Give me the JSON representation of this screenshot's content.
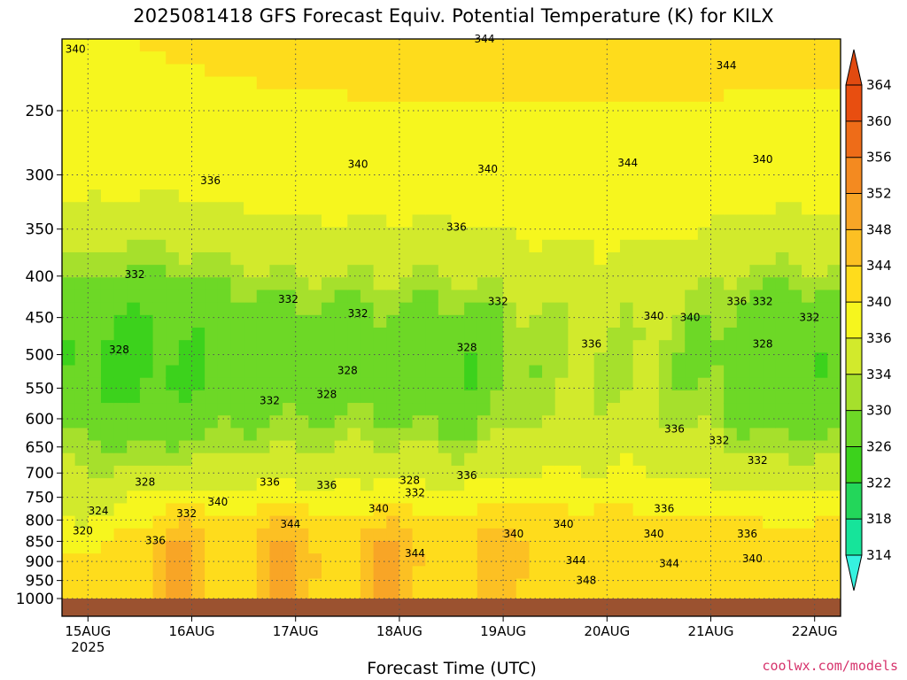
{
  "chart_data": {
    "type": "heatmap",
    "title": "2025081418 GFS Forecast Equiv. Potential Temperature (K) for KILX",
    "xlabel": "Forecast Time (UTC)",
    "ylabel": "",
    "credit": "coolwx.com/models",
    "y_axis": {
      "scale": "log-pressure",
      "inverted": true,
      "ylim": [
        1000,
        200
      ],
      "ticks": [
        250,
        300,
        350,
        400,
        450,
        500,
        550,
        600,
        650,
        700,
        750,
        800,
        850,
        900,
        950,
        1000
      ]
    },
    "x_axis": {
      "xlim": [
        "2025-08-14 18Z",
        "2025-08-22 06Z"
      ],
      "ticks": [
        {
          "label": "15AUG",
          "sub": "2025",
          "day": 15
        },
        {
          "label": "16AUG",
          "sub": "",
          "day": 16
        },
        {
          "label": "17AUG",
          "sub": "",
          "day": 17
        },
        {
          "label": "18AUG",
          "sub": "",
          "day": 18
        },
        {
          "label": "19AUG",
          "sub": "",
          "day": 19
        },
        {
          "label": "20AUG",
          "sub": "",
          "day": 20
        },
        {
          "label": "21AUG",
          "sub": "",
          "day": 21
        },
        {
          "label": "22AUG",
          "sub": "",
          "day": 22
        }
      ]
    },
    "grid": "dotted",
    "colorbar": {
      "units": "K",
      "levels": [
        314,
        318,
        322,
        326,
        330,
        334,
        336,
        340,
        344,
        348,
        352,
        356,
        360,
        364
      ],
      "colors": [
        "#22f0d0",
        "#16e49a",
        "#23d65a",
        "#3cd21c",
        "#6dd826",
        "#a6e02c",
        "#d2ea2c",
        "#f6f61e",
        "#fedc1c",
        "#fcc023",
        "#f8a526",
        "#f48a20",
        "#ee6c18",
        "#e84e10"
      ],
      "placement": "right"
    },
    "contour_labels": [
      {
        "v": "340",
        "day": 14.88,
        "p": 210
      },
      {
        "v": "344",
        "day": 18.82,
        "p": 204
      },
      {
        "v": "344",
        "day": 21.15,
        "p": 220
      },
      {
        "v": "336",
        "day": 16.18,
        "p": 305
      },
      {
        "v": "340",
        "day": 17.6,
        "p": 291
      },
      {
        "v": "340",
        "day": 18.85,
        "p": 295
      },
      {
        "v": "344",
        "day": 20.2,
        "p": 290
      },
      {
        "v": "340",
        "day": 21.5,
        "p": 287
      },
      {
        "v": "336",
        "day": 18.55,
        "p": 348
      },
      {
        "v": "332",
        "day": 15.45,
        "p": 398
      },
      {
        "v": "332",
        "day": 16.93,
        "p": 427
      },
      {
        "v": "332",
        "day": 17.6,
        "p": 445
      },
      {
        "v": "332",
        "day": 18.95,
        "p": 430
      },
      {
        "v": "340",
        "day": 20.45,
        "p": 448
      },
      {
        "v": "340",
        "day": 20.8,
        "p": 450
      },
      {
        "v": "336",
        "day": 21.25,
        "p": 430
      },
      {
        "v": "332",
        "day": 21.5,
        "p": 430
      },
      {
        "v": "332",
        "day": 21.95,
        "p": 450
      },
      {
        "v": "328",
        "day": 15.3,
        "p": 493
      },
      {
        "v": "328",
        "day": 17.5,
        "p": 523
      },
      {
        "v": "328",
        "day": 18.65,
        "p": 490
      },
      {
        "v": "336",
        "day": 19.85,
        "p": 485
      },
      {
        "v": "328",
        "day": 21.5,
        "p": 485
      },
      {
        "v": "332",
        "day": 16.75,
        "p": 570
      },
      {
        "v": "328",
        "day": 17.3,
        "p": 560
      },
      {
        "v": "336",
        "day": 20.65,
        "p": 618
      },
      {
        "v": "332",
        "day": 21.08,
        "p": 638
      },
      {
        "v": "332",
        "day": 21.45,
        "p": 675
      },
      {
        "v": "336",
        "day": 16.75,
        "p": 718
      },
      {
        "v": "336",
        "day": 17.3,
        "p": 725
      },
      {
        "v": "328",
        "day": 15.55,
        "p": 718
      },
      {
        "v": "328",
        "day": 18.1,
        "p": 715
      },
      {
        "v": "332",
        "day": 18.15,
        "p": 740
      },
      {
        "v": "336",
        "day": 18.65,
        "p": 705
      },
      {
        "v": "340",
        "day": 16.25,
        "p": 760
      },
      {
        "v": "340",
        "day": 17.8,
        "p": 775
      },
      {
        "v": "324",
        "day": 15.1,
        "p": 780
      },
      {
        "v": "332",
        "day": 15.95,
        "p": 785
      },
      {
        "v": "320",
        "day": 14.95,
        "p": 825
      },
      {
        "v": "336",
        "day": 15.65,
        "p": 848
      },
      {
        "v": "344",
        "day": 16.95,
        "p": 810
      },
      {
        "v": "336",
        "day": 20.55,
        "p": 775
      },
      {
        "v": "340",
        "day": 19.58,
        "p": 810
      },
      {
        "v": "340",
        "day": 19.1,
        "p": 832
      },
      {
        "v": "340",
        "day": 20.45,
        "p": 832
      },
      {
        "v": "336",
        "day": 21.35,
        "p": 832
      },
      {
        "v": "344",
        "day": 18.15,
        "p": 880
      },
      {
        "v": "344",
        "day": 19.7,
        "p": 898
      },
      {
        "v": "344",
        "day": 20.6,
        "p": 905
      },
      {
        "v": "340",
        "day": 21.4,
        "p": 893
      },
      {
        "v": "348",
        "day": 19.8,
        "p": 950
      }
    ]
  }
}
